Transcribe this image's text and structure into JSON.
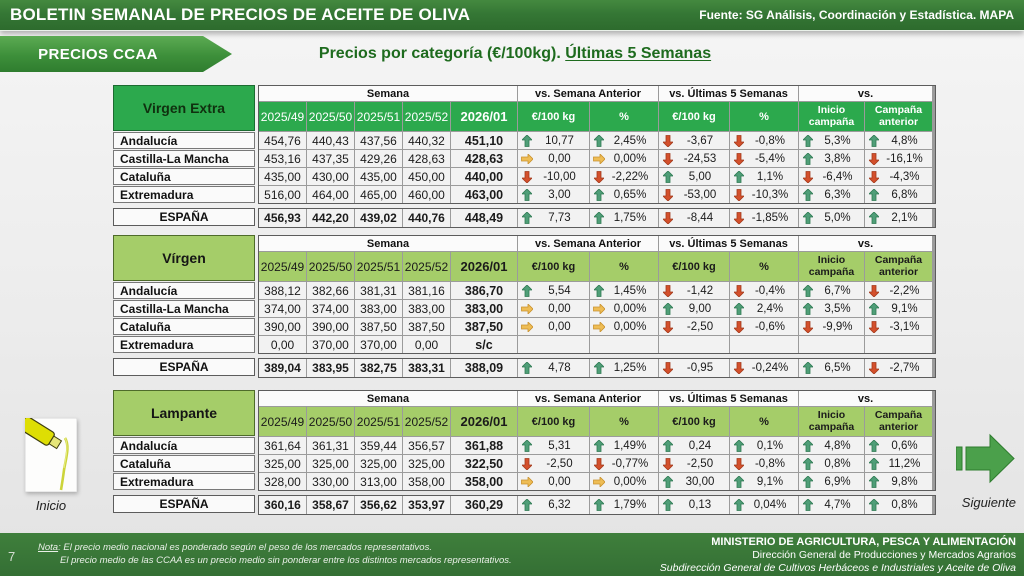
{
  "header": {
    "title": "BOLETIN SEMANAL DE PRECIOS DE ACEITE DE OLIVA",
    "source": "Fuente: SG Análisis, Coordinación y Estadística. MAPA"
  },
  "banner": {
    "label": "PRECIOS CCAA"
  },
  "page_title": {
    "main": "Precios por categoría (€/100kg). ",
    "underline": "Últimas 5 Semanas"
  },
  "table_headers": {
    "semana": "Semana",
    "weeks": [
      "2025/49",
      "2025/50",
      "2025/51",
      "2025/52",
      "2026/01"
    ],
    "vs_prev": "vs. Semana Anterior",
    "vs_last5": "vs. Últimas 5 Semanas",
    "vs": "vs.",
    "unit": "€/100 kg",
    "percent": "%",
    "inicio": "Inicio campaña",
    "anterior": "Campaña anterior"
  },
  "tables": [
    {
      "category": "Virgen Extra",
      "theme": "dark",
      "rows": [
        {
          "region": "Andalucía",
          "weeks": [
            "454,76",
            "440,43",
            "437,56",
            "440,32",
            "451,10"
          ],
          "cells": [
            [
              "up",
              "10,77"
            ],
            [
              "up",
              "2,45%"
            ],
            [
              "down",
              "-3,67"
            ],
            [
              "down",
              "-0,8%"
            ],
            [
              "up",
              "5,3%"
            ],
            [
              "up",
              "4,8%"
            ]
          ]
        },
        {
          "region": "Castilla-La Mancha",
          "weeks": [
            "453,16",
            "437,35",
            "429,26",
            "428,63",
            "428,63"
          ],
          "cells": [
            [
              "right",
              "0,00"
            ],
            [
              "right",
              "0,00%"
            ],
            [
              "down",
              "-24,53"
            ],
            [
              "down",
              "-5,4%"
            ],
            [
              "up",
              "3,8%"
            ],
            [
              "down",
              "-16,1%"
            ]
          ]
        },
        {
          "region": "Cataluña",
          "weeks": [
            "435,00",
            "430,00",
            "435,00",
            "450,00",
            "440,00"
          ],
          "cells": [
            [
              "down",
              "-10,00"
            ],
            [
              "down",
              "-2,22%"
            ],
            [
              "up",
              "5,00"
            ],
            [
              "up",
              "1,1%"
            ],
            [
              "down",
              "-6,4%"
            ],
            [
              "down",
              "-4,3%"
            ]
          ]
        },
        {
          "region": "Extremadura",
          "weeks": [
            "516,00",
            "464,00",
            "465,00",
            "460,00",
            "463,00"
          ],
          "cells": [
            [
              "up",
              "3,00"
            ],
            [
              "up",
              "0,65%"
            ],
            [
              "down",
              "-53,00"
            ],
            [
              "down",
              "-10,3%"
            ],
            [
              "up",
              "6,3%"
            ],
            [
              "up",
              "6,8%"
            ]
          ]
        }
      ],
      "total": {
        "region": "ESPAÑA",
        "weeks": [
          "456,93",
          "442,20",
          "439,02",
          "440,76",
          "448,49"
        ],
        "cells": [
          [
            "up",
            "7,73"
          ],
          [
            "up",
            "1,75%"
          ],
          [
            "down",
            "-8,44"
          ],
          [
            "down",
            "-1,85%"
          ],
          [
            "up",
            "5,0%"
          ],
          [
            "up",
            "2,1%"
          ]
        ]
      }
    },
    {
      "category": "Vírgen",
      "theme": "light",
      "rows": [
        {
          "region": "Andalucía",
          "weeks": [
            "388,12",
            "382,66",
            "381,31",
            "381,16",
            "386,70"
          ],
          "cells": [
            [
              "up",
              "5,54"
            ],
            [
              "up",
              "1,45%"
            ],
            [
              "down",
              "-1,42"
            ],
            [
              "down",
              "-0,4%"
            ],
            [
              "up",
              "6,7%"
            ],
            [
              "down",
              "-2,2%"
            ]
          ]
        },
        {
          "region": "Castilla-La Mancha",
          "weeks": [
            "374,00",
            "374,00",
            "383,00",
            "383,00",
            "383,00"
          ],
          "cells": [
            [
              "right",
              "0,00"
            ],
            [
              "right",
              "0,00%"
            ],
            [
              "up",
              "9,00"
            ],
            [
              "up",
              "2,4%"
            ],
            [
              "up",
              "3,5%"
            ],
            [
              "up",
              "9,1%"
            ]
          ]
        },
        {
          "region": "Cataluña",
          "weeks": [
            "390,00",
            "390,00",
            "387,50",
            "387,50",
            "387,50"
          ],
          "cells": [
            [
              "right",
              "0,00"
            ],
            [
              "right",
              "0,00%"
            ],
            [
              "down",
              "-2,50"
            ],
            [
              "down",
              "-0,6%"
            ],
            [
              "down",
              "-9,9%"
            ],
            [
              "down",
              "-3,1%"
            ]
          ]
        },
        {
          "region": "Extremadura",
          "weeks": [
            "0,00",
            "370,00",
            "370,00",
            "0,00",
            "s/c"
          ],
          "cells": [
            [
              "",
              ""
            ],
            [
              "",
              ""
            ],
            [
              "",
              ""
            ],
            [
              "",
              ""
            ],
            [
              "",
              ""
            ],
            [
              "",
              ""
            ]
          ]
        }
      ],
      "total": {
        "region": "ESPAÑA",
        "weeks": [
          "389,04",
          "383,95",
          "382,75",
          "383,31",
          "388,09"
        ],
        "cells": [
          [
            "up",
            "4,78"
          ],
          [
            "up",
            "1,25%"
          ],
          [
            "down",
            "-0,95"
          ],
          [
            "down",
            "-0,24%"
          ],
          [
            "up",
            "6,5%"
          ],
          [
            "down",
            "-2,7%"
          ]
        ]
      }
    },
    {
      "category": "Lampante",
      "theme": "light",
      "rows": [
        {
          "region": "Andalucía",
          "weeks": [
            "361,64",
            "361,31",
            "359,44",
            "356,57",
            "361,88"
          ],
          "cells": [
            [
              "up",
              "5,31"
            ],
            [
              "up",
              "1,49%"
            ],
            [
              "up",
              "0,24"
            ],
            [
              "up",
              "0,1%"
            ],
            [
              "up",
              "4,8%"
            ],
            [
              "up",
              "0,6%"
            ]
          ]
        },
        {
          "region": "Cataluña",
          "weeks": [
            "325,00",
            "325,00",
            "325,00",
            "325,00",
            "322,50"
          ],
          "cells": [
            [
              "down",
              "-2,50"
            ],
            [
              "down",
              "-0,77%"
            ],
            [
              "down",
              "-2,50"
            ],
            [
              "down",
              "-0,8%"
            ],
            [
              "up",
              "0,8%"
            ],
            [
              "up",
              "11,2%"
            ]
          ]
        },
        {
          "region": "Extremadura",
          "weeks": [
            "328,00",
            "330,00",
            "313,00",
            "358,00",
            "358,00"
          ],
          "cells": [
            [
              "right",
              "0,00"
            ],
            [
              "right",
              "0,00%"
            ],
            [
              "up",
              "30,00"
            ],
            [
              "up",
              "9,1%"
            ],
            [
              "up",
              "6,9%"
            ],
            [
              "up",
              "9,8%"
            ]
          ]
        }
      ],
      "total": {
        "region": "ESPAÑA",
        "weeks": [
          "360,16",
          "358,67",
          "356,62",
          "353,97",
          "360,29"
        ],
        "cells": [
          [
            "up",
            "6,32"
          ],
          [
            "up",
            "1,79%"
          ],
          [
            "up",
            "0,13"
          ],
          [
            "up",
            "0,04%"
          ],
          [
            "up",
            "4,7%"
          ],
          [
            "up",
            "0,8%"
          ]
        ]
      }
    }
  ],
  "nav": {
    "inicio": "Inicio",
    "siguiente": "Siguiente"
  },
  "footnote": {
    "label": "Nota",
    "line1": ": El precio medio nacional es ponderado según el peso de los mercados representativos.",
    "line2": "El precio medio de las CCAA es un precio medio sin ponderar entre los distintos mercados representativos."
  },
  "ministry": {
    "line1": "MINISTERIO DE AGRICULTURA, PESCA Y ALIMENTACIÓN",
    "line2": "Dirección General de Producciones y Mercados Agrarios",
    "line3": "Subdirección General de Cultivos Herbáceos e Industriales y Aceite de Oliva"
  },
  "page_number": "7",
  "colors": {
    "header_green": "#357735",
    "table_dark_green": "#2ca94d",
    "table_light_green": "#a5cd69",
    "title_green": "#1e6b1e",
    "arrow_up": "#4f9e78",
    "arrow_up_stroke": "#2e7a52",
    "arrow_down": "#d4502c",
    "arrow_down_stroke": "#a33a1b",
    "arrow_right": "#eebd55",
    "arrow_right_stroke": "#c9912d"
  }
}
